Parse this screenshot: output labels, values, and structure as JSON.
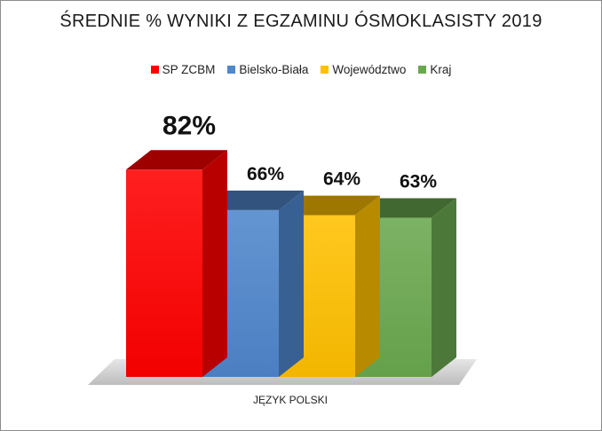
{
  "chart_data": {
    "type": "bar",
    "title": "ŚREDNIE % WYNIKI Z EGZAMINU ÓSMOKLASISTY 2019",
    "categories": [
      "JĘZYK POLSKI"
    ],
    "series": [
      {
        "name": "SP ZCBM",
        "values": [
          82
        ],
        "label": "82%",
        "color": "#ff0000"
      },
      {
        "name": "Bielsko-Biała",
        "values": [
          66
        ],
        "label": "66%",
        "color": "#4f86cc"
      },
      {
        "name": "Województwo",
        "values": [
          64
        ],
        "label": "64%",
        "color": "#ffc000"
      },
      {
        "name": "Kraj",
        "values": [
          63
        ],
        "label": "63%",
        "color": "#6aa84f"
      }
    ],
    "legend_position": "top",
    "grid": false,
    "ylim": [
      0,
      100
    ]
  }
}
